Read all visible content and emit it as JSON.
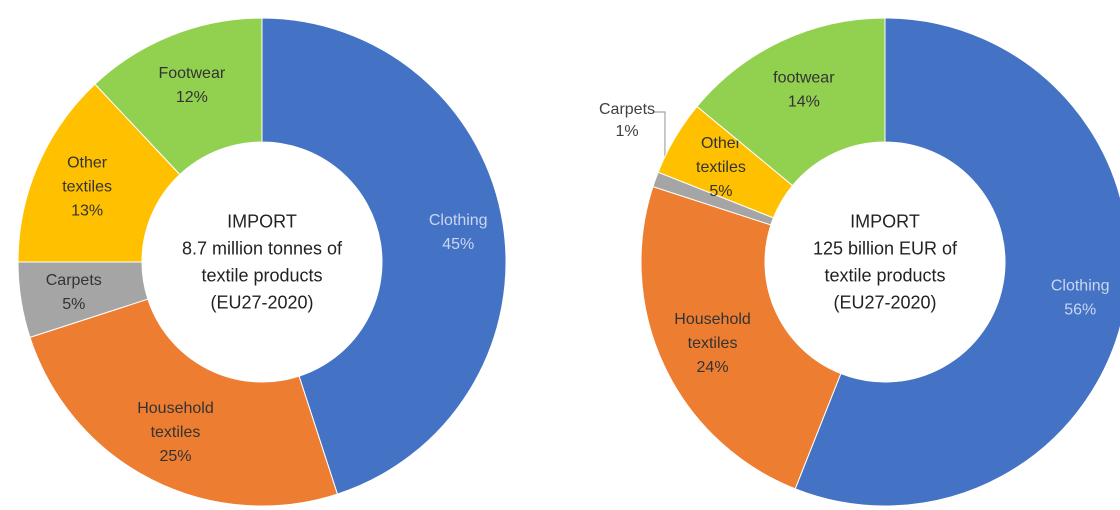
{
  "colors": {
    "clothing": "#4472C4",
    "household": "#ED7D31",
    "carpets": "#A5A5A5",
    "other": "#FFC000",
    "footwear": "#92D050"
  },
  "chart_data": [
    {
      "type": "pie",
      "variant": "donut",
      "center_text": [
        "IMPORT",
        "8.7 million tonnes of",
        "textile products",
        "(EU27-2020)"
      ],
      "slices": [
        {
          "key": "clothing",
          "label_lines": [
            "Clothing",
            "45%"
          ],
          "value": 45
        },
        {
          "key": "household",
          "label_lines": [
            "Household",
            "textiles",
            "25%"
          ],
          "value": 25
        },
        {
          "key": "carpets",
          "label_lines": [
            "Carpets",
            "5%"
          ],
          "value": 5
        },
        {
          "key": "other",
          "label_lines": [
            "Other",
            "textiles",
            "13%"
          ],
          "value": 13
        },
        {
          "key": "footwear",
          "label_lines": [
            "Footwear",
            "12%"
          ],
          "value": 12
        }
      ]
    },
    {
      "type": "pie",
      "variant": "donut",
      "center_text": [
        "IMPORT",
        "125 billion EUR of",
        "textile products",
        "(EU27-2020)"
      ],
      "slices": [
        {
          "key": "clothing",
          "label_lines": [
            "Clothing",
            "56%"
          ],
          "value": 56
        },
        {
          "key": "household",
          "label_lines": [
            "Household",
            "textiles",
            "24%"
          ],
          "value": 24
        },
        {
          "key": "carpets",
          "label_lines": [
            "Carpets",
            "1%"
          ],
          "value": 1,
          "outside_label": true
        },
        {
          "key": "other",
          "label_lines": [
            "Other",
            "textiles",
            "5%"
          ],
          "value": 5
        },
        {
          "key": "footwear",
          "label_lines": [
            "footwear",
            "14%"
          ],
          "value": 14
        }
      ]
    }
  ]
}
